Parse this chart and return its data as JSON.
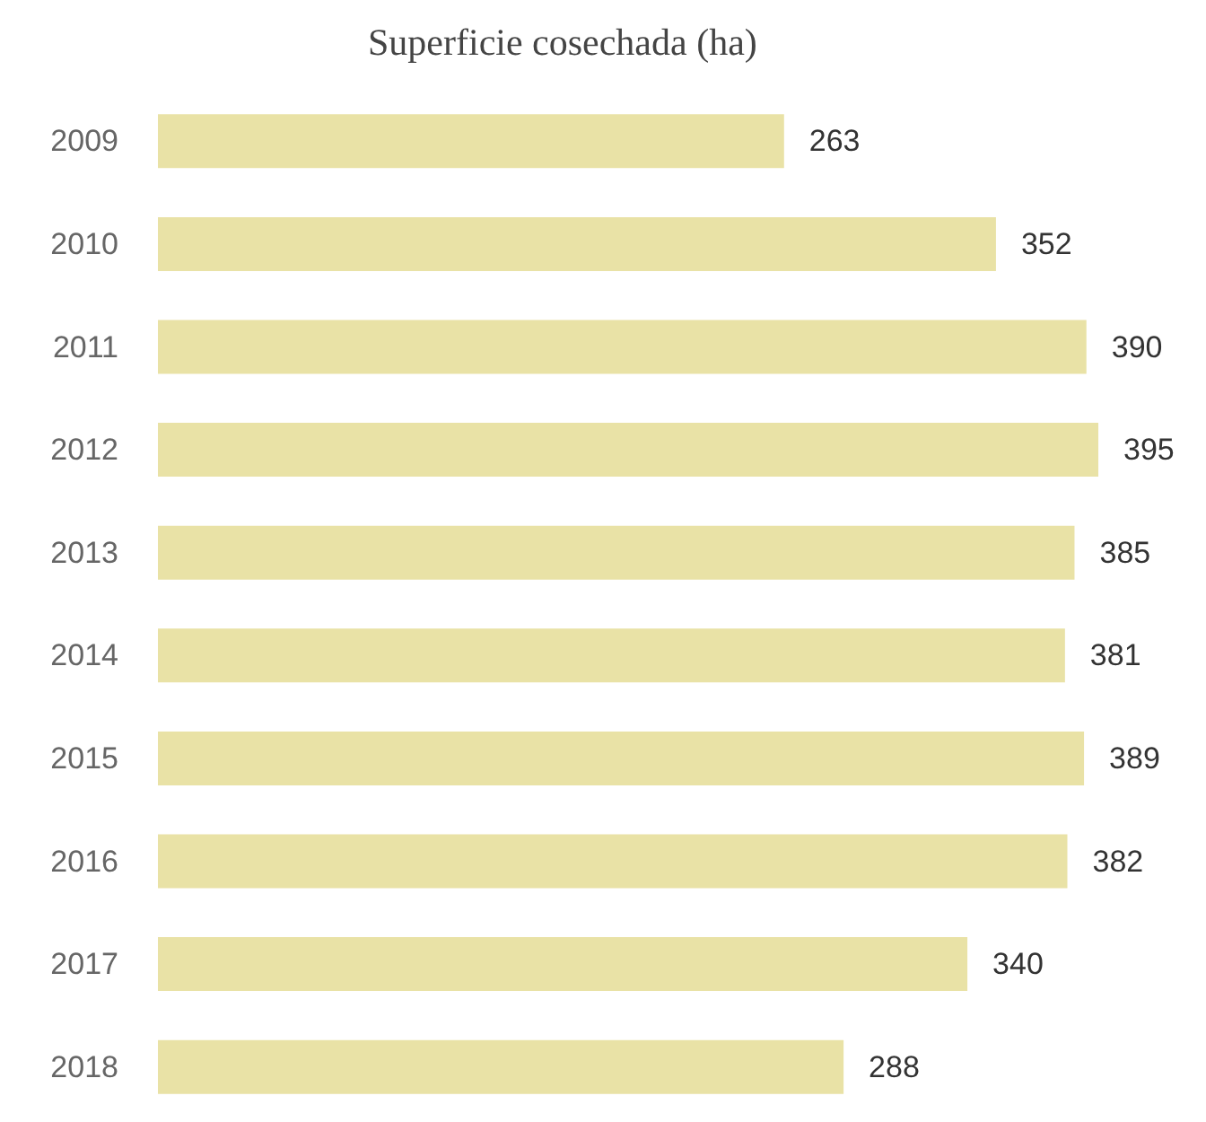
{
  "chart_data": {
    "type": "bar",
    "orientation": "horizontal",
    "title": "Superficie cosechada (ha)",
    "categories": [
      "2009",
      "2010",
      "2011",
      "2012",
      "2013",
      "2014",
      "2015",
      "2016",
      "2017",
      "2018"
    ],
    "values": [
      263,
      352,
      390,
      395,
      385,
      381,
      389,
      382,
      340,
      288
    ],
    "color": "#e9e2a6",
    "data_labels": true
  }
}
